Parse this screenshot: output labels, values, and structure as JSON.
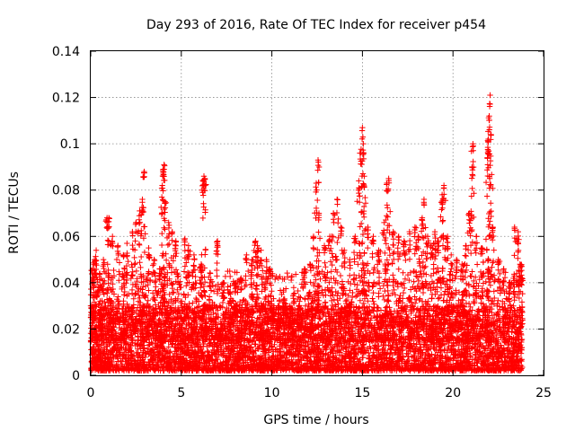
{
  "chart_data": {
    "type": "scatter",
    "marker": "plus",
    "title": "Day 293 of 2016, Rate Of TEC Index for receiver p454",
    "xlabel": "GPS time / hours",
    "ylabel": "ROTI / TECUs",
    "xlim": [
      0,
      25
    ],
    "ylim": [
      0,
      0.14
    ],
    "xticks": [
      "0",
      "5",
      "10",
      "15",
      "20",
      "25"
    ],
    "yticks": [
      "0",
      "0.02",
      "0.04",
      "0.06",
      "0.08",
      "0.1",
      "0.12",
      "0.14"
    ],
    "grid": true,
    "color": "#ff0000",
    "series": [
      {
        "name": "ROTI",
        "points": [
          [
            0.0,
            0.03
          ],
          [
            0.1,
            0.046
          ],
          [
            0.2,
            0.05
          ],
          [
            0.3,
            0.054
          ],
          [
            0.5,
            0.044
          ],
          [
            0.7,
            0.05
          ],
          [
            0.9,
            0.068
          ],
          [
            1.0,
            0.068
          ],
          [
            1.2,
            0.06
          ],
          [
            1.5,
            0.056
          ],
          [
            1.8,
            0.052
          ],
          [
            2.0,
            0.057
          ],
          [
            2.3,
            0.062
          ],
          [
            2.5,
            0.066
          ],
          [
            2.7,
            0.071
          ],
          [
            2.85,
            0.076
          ],
          [
            2.95,
            0.088
          ],
          [
            3.2,
            0.055
          ],
          [
            3.5,
            0.05
          ],
          [
            3.8,
            0.046
          ],
          [
            3.95,
            0.082
          ],
          [
            4.0,
            0.089
          ],
          [
            4.05,
            0.091
          ],
          [
            4.1,
            0.075
          ],
          [
            4.3,
            0.066
          ],
          [
            4.5,
            0.062
          ],
          [
            4.7,
            0.058
          ],
          [
            5.2,
            0.059
          ],
          [
            5.4,
            0.056
          ],
          [
            5.7,
            0.052
          ],
          [
            6.1,
            0.048
          ],
          [
            6.2,
            0.084
          ],
          [
            6.25,
            0.086
          ],
          [
            6.3,
            0.085
          ],
          [
            6.6,
            0.044
          ],
          [
            7.0,
            0.058
          ],
          [
            7.3,
            0.04
          ],
          [
            7.7,
            0.036
          ],
          [
            8.0,
            0.04
          ],
          [
            8.3,
            0.042
          ],
          [
            8.6,
            0.052
          ],
          [
            8.9,
            0.05
          ],
          [
            9.1,
            0.058
          ],
          [
            9.2,
            0.056
          ],
          [
            9.4,
            0.054
          ],
          [
            9.7,
            0.05
          ],
          [
            9.9,
            0.046
          ],
          [
            10.1,
            0.028
          ],
          [
            10.4,
            0.03
          ],
          [
            10.7,
            0.033
          ],
          [
            11.0,
            0.03
          ],
          [
            11.2,
            0.035
          ],
          [
            11.5,
            0.034
          ],
          [
            11.8,
            0.046
          ],
          [
            12.1,
            0.048
          ],
          [
            12.3,
            0.06
          ],
          [
            12.45,
            0.083
          ],
          [
            12.55,
            0.093
          ],
          [
            12.6,
            0.07
          ],
          [
            12.9,
            0.056
          ],
          [
            13.2,
            0.06
          ],
          [
            13.4,
            0.07
          ],
          [
            13.6,
            0.076
          ],
          [
            13.8,
            0.064
          ],
          [
            14.0,
            0.054
          ],
          [
            14.3,
            0.05
          ],
          [
            14.6,
            0.06
          ],
          [
            14.8,
            0.084
          ],
          [
            14.9,
            0.096
          ],
          [
            15.0,
            0.107
          ],
          [
            15.05,
            0.1
          ],
          [
            15.1,
            0.086
          ],
          [
            15.3,
            0.064
          ],
          [
            15.6,
            0.06
          ],
          [
            15.9,
            0.054
          ],
          [
            16.2,
            0.066
          ],
          [
            16.35,
            0.083
          ],
          [
            16.45,
            0.085
          ],
          [
            16.7,
            0.062
          ],
          [
            17.0,
            0.06
          ],
          [
            17.3,
            0.058
          ],
          [
            17.6,
            0.062
          ],
          [
            17.9,
            0.064
          ],
          [
            18.1,
            0.06
          ],
          [
            18.3,
            0.068
          ],
          [
            18.4,
            0.076
          ],
          [
            18.6,
            0.06
          ],
          [
            18.8,
            0.056
          ],
          [
            19.0,
            0.062
          ],
          [
            19.2,
            0.058
          ],
          [
            19.4,
            0.078
          ],
          [
            19.5,
            0.082
          ],
          [
            19.7,
            0.06
          ],
          [
            19.9,
            0.052
          ],
          [
            20.2,
            0.05
          ],
          [
            20.5,
            0.048
          ],
          [
            20.7,
            0.056
          ],
          [
            20.9,
            0.07
          ],
          [
            21.05,
            0.09
          ],
          [
            21.1,
            0.1
          ],
          [
            21.3,
            0.06
          ],
          [
            21.6,
            0.055
          ],
          [
            21.9,
            0.094
          ],
          [
            21.95,
            0.102
          ],
          [
            22.0,
            0.112
          ],
          [
            22.05,
            0.121
          ],
          [
            22.1,
            0.104
          ],
          [
            22.2,
            0.064
          ],
          [
            22.5,
            0.05
          ],
          [
            22.8,
            0.046
          ],
          [
            23.1,
            0.04
          ],
          [
            23.4,
            0.064
          ],
          [
            23.6,
            0.062
          ],
          [
            23.7,
            0.048
          ],
          [
            23.8,
            0.047
          ]
        ],
        "baseline_band": [
          0.002,
          0.03
        ],
        "mid_band_peak": 0.045
      }
    ]
  }
}
